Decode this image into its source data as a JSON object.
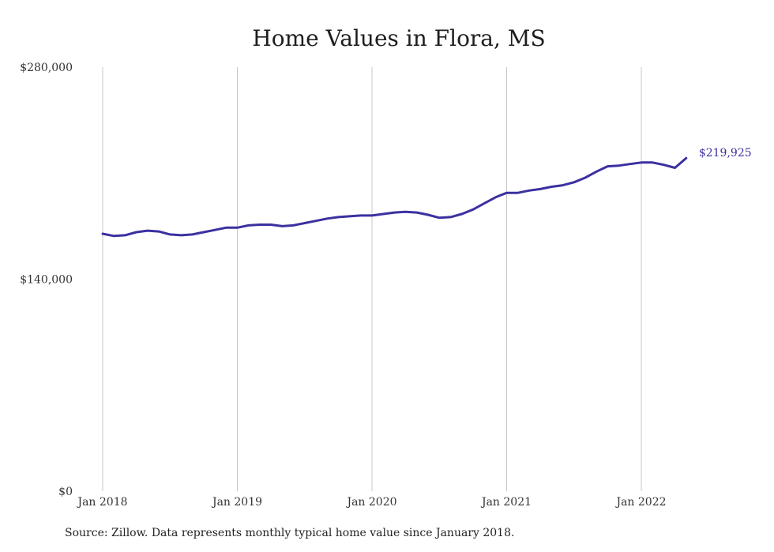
{
  "source": "Source: Zillow. Data represents monthly typical home value since January 2018.",
  "chart_data": {
    "type": "line",
    "title": "Home Values in Flora, MS",
    "xlabel": "",
    "ylabel": "",
    "ylim": [
      0,
      280000
    ],
    "yticks": [
      0,
      140000,
      280000
    ],
    "ytick_labels": [
      "$0",
      "$140,000",
      "$280,000"
    ],
    "xticks": [
      "Jan 2018",
      "Jan 2019",
      "Jan 2020",
      "Jan 2021",
      "Jan 2022"
    ],
    "grid": "vertical",
    "line_color": "#3b31a0",
    "end_label": "$219,925",
    "series": [
      {
        "x": [
          "2018-01",
          "2018-02",
          "2018-03",
          "2018-04",
          "2018-05",
          "2018-06",
          "2018-07",
          "2018-08",
          "2018-09",
          "2018-10",
          "2018-11",
          "2018-12",
          "2019-01",
          "2019-02",
          "2019-03",
          "2019-04",
          "2019-05",
          "2019-06",
          "2019-07",
          "2019-08",
          "2019-09",
          "2019-10",
          "2019-11",
          "2019-12",
          "2020-01",
          "2020-02",
          "2020-03",
          "2020-04",
          "2020-05",
          "2020-06",
          "2020-07",
          "2020-08",
          "2020-09",
          "2020-10",
          "2020-11",
          "2020-12",
          "2021-01",
          "2021-02",
          "2021-03",
          "2021-04",
          "2021-05",
          "2021-06",
          "2021-07",
          "2021-08",
          "2021-09",
          "2021-10",
          "2021-11",
          "2021-12",
          "2022-01",
          "2022-02",
          "2022-03",
          "2022-04",
          "2022-05"
        ],
        "values": [
          170000,
          168500,
          169000,
          171000,
          172000,
          171500,
          169500,
          169000,
          169500,
          171000,
          172500,
          174000,
          174000,
          175500,
          176000,
          176000,
          175000,
          175500,
          177000,
          178500,
          180000,
          181000,
          181500,
          182000,
          182000,
          183000,
          184000,
          184500,
          184000,
          182500,
          180500,
          181000,
          183000,
          186000,
          190000,
          194000,
          197000,
          197000,
          198500,
          199500,
          201000,
          202000,
          204000,
          207000,
          211000,
          214500,
          215000,
          216000,
          217000,
          217000,
          215500,
          213500,
          219925
        ]
      }
    ]
  }
}
